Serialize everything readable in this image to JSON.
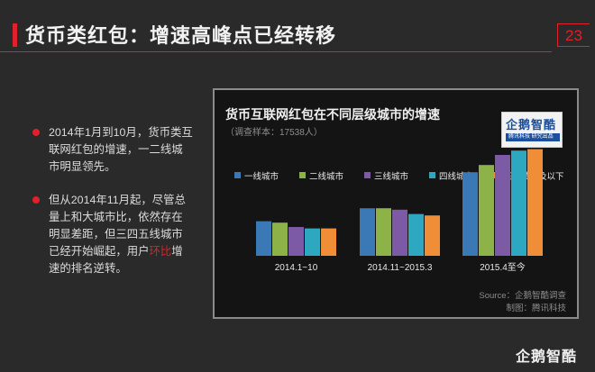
{
  "header": {
    "title": "货币类红包：增速高峰点已经转移",
    "page_number": "23"
  },
  "bullets": [
    {
      "text": "2014年1月到10月，货币类互联网红包的增速，一二线城市明显领先。"
    },
    {
      "text_before": "但从2014年11月起，尽管总量上和大城市比，依然存在明显差距，但三四五线城市已经开始崛起，用户",
      "highlight": "环比",
      "text_after": "增速的排名逆转。"
    }
  ],
  "chart": {
    "title": "货币互联网红包在不同层级城市的增速",
    "subtitle": "（调查样本：17538人）",
    "logo_text": "企鹅智酷",
    "logo_tag": "腾讯科技   研究出品",
    "source_line1": "Source：企鹅智酷调查",
    "source_line2": "制图：腾讯科技"
  },
  "chart_data": {
    "type": "bar",
    "categories": [
      "2014.1~10",
      "2014.11~2015.3",
      "2015.4至今"
    ],
    "series": [
      {
        "name": "一线城市",
        "color": "#3b78b6",
        "values": [
          24,
          33,
          58
        ]
      },
      {
        "name": "二线城市",
        "color": "#8db348",
        "values": [
          23,
          33,
          63
        ]
      },
      {
        "name": "三线城市",
        "color": "#7c5aa5",
        "values": [
          20,
          32,
          70
        ]
      },
      {
        "name": "四线城市",
        "color": "#2ea7c0",
        "values": [
          19,
          29,
          73
        ]
      },
      {
        "name": "五线城市及以下",
        "color": "#ef8e37",
        "values": [
          19,
          28,
          74
        ]
      }
    ],
    "ylim": [
      0,
      100
    ]
  },
  "footer": {
    "brand": "企鹅智酷"
  }
}
